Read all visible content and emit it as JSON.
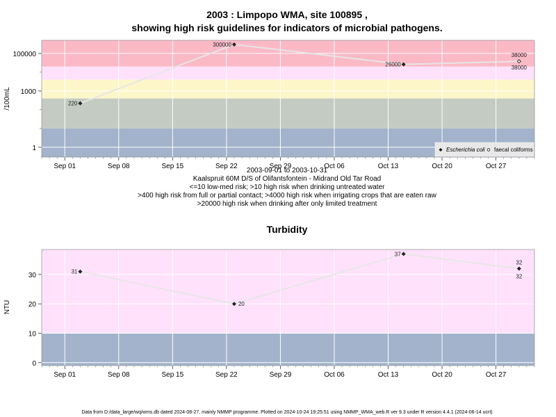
{
  "chart_data": [
    {
      "type": "line",
      "title_line1": "2003 : Limpopo WMA, site 100895 ,",
      "title_line2": "showing high risk guidelines for indicators of microbial pathogens.",
      "ylabel": "/100mL",
      "y_scale": "log",
      "ylim": [
        0.3,
        500000
      ],
      "x_range": [
        "2003-08-29",
        "2003-11-01"
      ],
      "x_ticks": [
        "Sep 01",
        "Sep 08",
        "Sep 15",
        "Sep 22",
        "Sep 29",
        "Oct 06",
        "Oct 13",
        "Oct 20",
        "Oct 27"
      ],
      "y_ticks": [
        "1",
        "1000",
        "100000"
      ],
      "date_range_text": "2003-09-01 to 2003-10-31",
      "site_text": "Kaalspruit 60M D/S of Olifantsfontein - Midrand Old Tar Road",
      "guideline_lines": [
        "<=10 low-med risk; >10 high risk when drinking untreated water",
        ">400 high risk from full or partial contact; >4000 high risk when irrigating crops that are eaten raw",
        ">20000 high risk when drinking after only limited treatment"
      ],
      "bands": [
        {
          "from": 0.3,
          "to": 10,
          "color": "#a2b3cb"
        },
        {
          "from": 10,
          "to": 400,
          "color": "#c4cbc2"
        },
        {
          "from": 400,
          "to": 4000,
          "color": "#fdf6c9"
        },
        {
          "from": 4000,
          "to": 20000,
          "color": "#ffe1fb"
        },
        {
          "from": 20000,
          "to": 500000,
          "color": "#fbb9c6"
        }
      ],
      "series": [
        {
          "name": "Escherichia coli",
          "marker": "diamond",
          "points": [
            {
              "x": "2003-09-03",
              "y": 220,
              "label": "220"
            },
            {
              "x": "2003-09-23",
              "y": 300000,
              "label": "300000"
            },
            {
              "x": "2003-10-15",
              "y": 26000,
              "label": "26000"
            },
            {
              "x": "2003-10-30",
              "y": 38000,
              "label": "38000"
            }
          ]
        },
        {
          "name": "faecal coliforms",
          "marker": "circle",
          "points": [
            {
              "x": "2003-10-30",
              "y": 38000,
              "label": "38000"
            }
          ]
        }
      ],
      "legend_position": "bottom-right"
    },
    {
      "type": "line",
      "title": "Turbidity",
      "ylabel": "NTU",
      "ylim": [
        -1,
        38.5
      ],
      "x_range": [
        "2003-08-29",
        "2003-11-01"
      ],
      "x_ticks": [
        "Sep 01",
        "Sep 08",
        "Sep 15",
        "Sep 22",
        "Sep 29",
        "Oct 06",
        "Oct 13",
        "Oct 20",
        "Oct 27"
      ],
      "y_ticks": [
        "0",
        "10",
        "20",
        "30"
      ],
      "bands": [
        {
          "from": -1,
          "to": 10,
          "color": "#a2b3cb"
        },
        {
          "from": 10,
          "to": 38.5,
          "color": "#ffe1fb"
        }
      ],
      "series": [
        {
          "name": "Turbidity",
          "marker": "diamond",
          "points": [
            {
              "x": "2003-09-03",
              "y": 31,
              "label": "31"
            },
            {
              "x": "2003-09-23",
              "y": 20,
              "label": "20"
            },
            {
              "x": "2003-10-15",
              "y": 37,
              "label": "37"
            },
            {
              "x": "2003-10-30",
              "y": 32,
              "label": "32"
            }
          ]
        }
      ]
    }
  ],
  "footer": "Data from D:/data_large/wq/wms.db dated 2024-08-27, mainly NMMP programme. Plotted on 2024-10-24 19:25:51 using NMMP_WMA_web.R ver 9.3 under R version 4.4.1 (2024-06-14 ucrt)"
}
